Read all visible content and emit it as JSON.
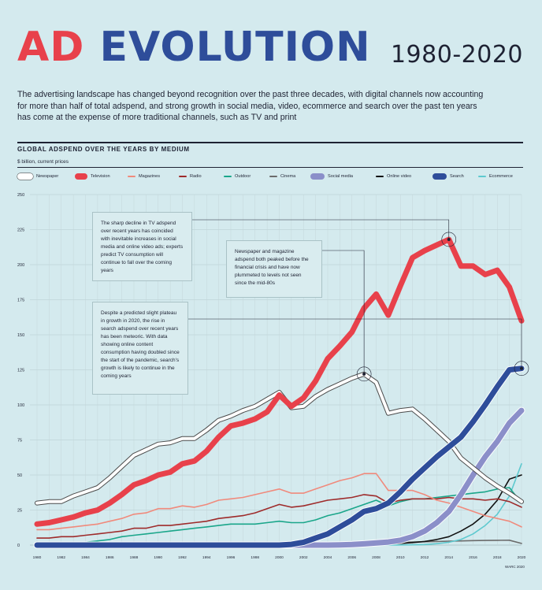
{
  "header": {
    "title_part1": "AD",
    "title_part2": "EVOLUTION",
    "years": "1980-2020",
    "intro": "The advertising landscape has changed beyond recognition over the past three decades, with digital channels now accounting for more than half of total adspend, and strong growth in social media, video, ecommerce and search over the past ten years has come at the expense of more traditional channels, such as TV and print"
  },
  "chart_title": "GLOBAL ADSPEND OVER THE YEARS BY MEDIUM",
  "chart_subtitle": "$ billion, current prices",
  "source": "WARC 2020",
  "annotations": {
    "tv": "The sharp decline in TV adspend over recent years has coincided with inevitable increases in social media and online video ads; experts predict TV consumption will continue to fall over the coming years",
    "print": "Newspaper and magazine adspend both peaked before the financial crisis and have now plummeted to levels not seen since the mid-80s",
    "search": "Despite a predicted slight plateau in growth in 2020, the rise in search adspend over recent years has been meteoric. With data showing online content consumption having doubled since the start of the pandemic, search's growth is likely to continue in the coming years"
  },
  "colors": {
    "background": "#d4eaee",
    "title_red": "#e8414b",
    "title_blue": "#2e4d9a"
  },
  "chart_data": {
    "type": "line",
    "title": "GLOBAL ADSPEND OVER THE YEARS BY MEDIUM",
    "ylabel": "$ billion, current prices",
    "xlabel": "",
    "ylim": [
      0,
      250
    ],
    "yticks": [
      0,
      25,
      50,
      75,
      100,
      125,
      150,
      175,
      200,
      225,
      250
    ],
    "xticks": [
      1980,
      1982,
      1984,
      1986,
      1988,
      1990,
      1992,
      1994,
      1996,
      1998,
      2000,
      2002,
      2004,
      2006,
      2008,
      2010,
      2012,
      2014,
      2016,
      2018,
      2020
    ],
    "grid": true,
    "legend": "top",
    "x": [
      1980,
      1981,
      1982,
      1983,
      1984,
      1985,
      1986,
      1987,
      1988,
      1989,
      1990,
      1991,
      1992,
      1993,
      1994,
      1995,
      1996,
      1997,
      1998,
      1999,
      2000,
      2001,
      2002,
      2003,
      2004,
      2005,
      2006,
      2007,
      2008,
      2009,
      2010,
      2011,
      2012,
      2013,
      2014,
      2015,
      2016,
      2017,
      2018,
      2019,
      2020
    ],
    "series": [
      {
        "name": "Newspaper",
        "color": "#ffffff",
        "values": [
          30,
          31,
          31,
          35,
          38,
          41,
          48,
          56,
          64,
          68,
          72,
          73,
          76,
          76,
          82,
          89,
          92,
          96,
          99,
          104,
          109,
          98,
          99,
          106,
          111,
          115,
          119,
          122,
          116,
          94,
          96,
          97,
          90,
          82,
          74,
          62,
          55,
          48,
          42,
          37,
          31
        ]
      },
      {
        "name": "Television",
        "color": "#e8414b",
        "values": [
          15,
          16,
          18,
          20,
          23,
          25,
          30,
          36,
          43,
          46,
          50,
          52,
          58,
          60,
          67,
          77,
          85,
          87,
          90,
          95,
          107,
          99,
          105,
          117,
          133,
          142,
          152,
          169,
          179,
          164,
          185,
          205,
          210,
          214,
          218,
          199,
          199,
          193,
          196,
          184,
          160
        ]
      },
      {
        "name": "Magazines",
        "color": "#f08a7c",
        "values": [
          11,
          11,
          12,
          13,
          14,
          15,
          17,
          19,
          22,
          23,
          26,
          26,
          28,
          27,
          29,
          32,
          33,
          34,
          36,
          38,
          40,
          37,
          37,
          40,
          43,
          46,
          48,
          51,
          51,
          39,
          39,
          39,
          36,
          32,
          30,
          27,
          24,
          21,
          19,
          17,
          13
        ]
      },
      {
        "name": "Radio",
        "color": "#9e2b2b",
        "values": [
          5,
          5,
          6,
          6,
          7,
          8,
          9,
          10,
          12,
          12,
          14,
          14,
          15,
          16,
          17,
          19,
          20,
          21,
          23,
          26,
          29,
          27,
          28,
          30,
          32,
          33,
          34,
          36,
          35,
          30,
          32,
          33,
          33,
          33,
          34,
          33,
          33,
          32,
          33,
          31,
          27
        ]
      },
      {
        "name": "Outdoor",
        "color": "#1aa68a",
        "values": [
          2,
          2,
          2,
          2,
          2,
          3,
          4,
          6,
          7,
          8,
          9,
          10,
          11,
          12,
          13,
          14,
          15,
          15,
          15,
          16,
          17,
          16,
          16,
          18,
          21,
          23,
          26,
          29,
          32,
          28,
          31,
          33,
          33,
          34,
          35,
          36,
          37,
          38,
          40,
          41,
          30
        ]
      },
      {
        "name": "Cinema",
        "color": "#6b6b6b",
        "values": [
          0.2,
          0.2,
          0.2,
          0.2,
          0.3,
          0.3,
          0.3,
          0.4,
          0.4,
          0.5,
          0.5,
          0.5,
          0.6,
          0.6,
          0.7,
          0.7,
          0.8,
          0.9,
          1.0,
          1.0,
          1.1,
          1.1,
          1.2,
          1.3,
          1.4,
          1.5,
          1.6,
          1.7,
          1.8,
          1.8,
          2.0,
          2.2,
          2.4,
          2.6,
          2.8,
          3.0,
          3.2,
          3.3,
          3.4,
          3.5,
          1.2
        ]
      },
      {
        "name": "Social media",
        "color": "#8b8fc9",
        "values": [
          0,
          0,
          0,
          0,
          0,
          0,
          0,
          0,
          0,
          0,
          0,
          0,
          0,
          0,
          0,
          0,
          0,
          0,
          0,
          0,
          0,
          0,
          0,
          0,
          0,
          0.1,
          0.4,
          0.9,
          1.5,
          2.2,
          3.5,
          6,
          10,
          16,
          24,
          36,
          50,
          63,
          74,
          87,
          96
        ]
      },
      {
        "name": "Online video",
        "color": "#111111",
        "values": [
          0,
          0,
          0,
          0,
          0,
          0,
          0,
          0,
          0,
          0,
          0,
          0,
          0,
          0,
          0,
          0,
          0,
          0,
          0,
          0,
          0,
          0,
          0,
          0,
          0,
          0.1,
          0.2,
          0.4,
          0.6,
          0.8,
          1.2,
          1.8,
          2.6,
          4,
          6,
          10,
          15,
          22,
          32,
          47,
          50
        ]
      },
      {
        "name": "Search",
        "color": "#2e4d9a",
        "values": [
          0,
          0,
          0,
          0,
          0,
          0,
          0,
          0,
          0,
          0,
          0,
          0,
          0,
          0,
          0,
          0,
          0,
          0,
          0,
          0,
          0,
          0.5,
          2,
          5,
          8,
          13,
          18,
          24,
          26,
          30,
          38,
          47,
          55,
          63,
          70,
          77,
          88,
          100,
          113,
          125,
          126
        ]
      },
      {
        "name": "Ecommerce",
        "color": "#5ec9cf",
        "values": [
          0,
          0,
          0,
          0,
          0,
          0,
          0,
          0,
          0,
          0,
          0,
          0,
          0,
          0,
          0,
          0,
          0,
          0,
          0,
          0,
          0,
          0,
          0,
          0,
          0,
          0,
          0,
          0,
          0,
          0,
          0.1,
          0.2,
          0.4,
          1,
          2,
          4,
          8,
          14,
          22,
          35,
          58
        ]
      }
    ]
  }
}
